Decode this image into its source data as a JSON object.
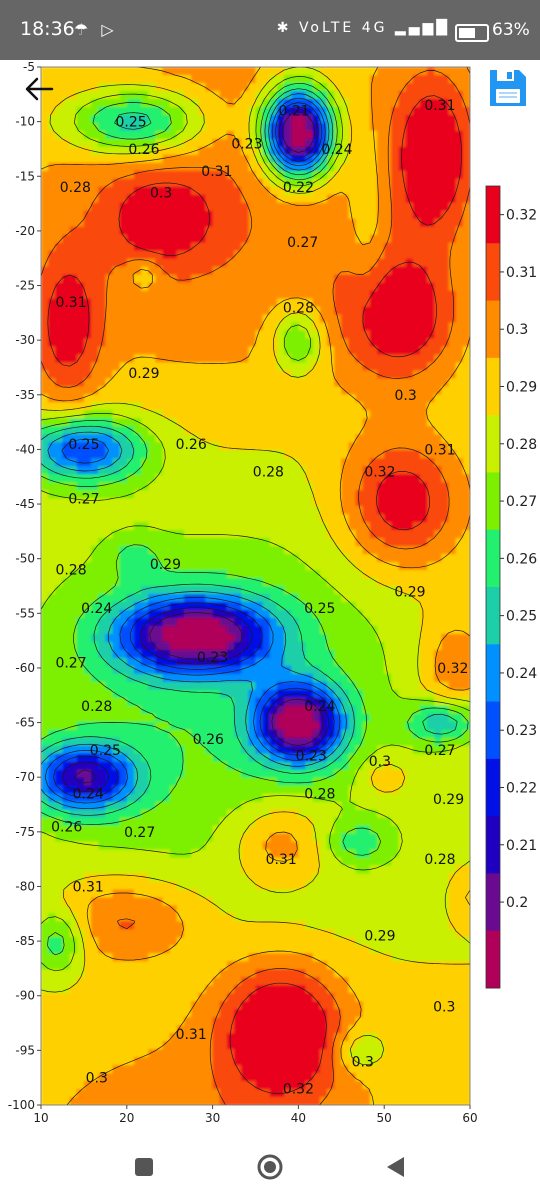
{
  "status_bar": {
    "time": "18:36",
    "left_icons": "☂ ▷",
    "right_icons": "✱ VoLTE 4G ▂▄▆█",
    "battery": "63%",
    "battery_level": 0.63
  },
  "toolbar": {
    "back_icon": "arrow-left-icon",
    "save_icon": "save-floppy-icon",
    "save_color": "#2196f3"
  },
  "nav_bar": {
    "recents_icon": "square-icon",
    "home_icon": "circle-icon",
    "back_icon": "triangle-back-icon"
  },
  "chart_data": {
    "type": "heatmap",
    "subtype": "filled-contour",
    "xlim": [
      10,
      60
    ],
    "ylim": [
      -100,
      -5
    ],
    "x_ticks": [
      10,
      20,
      30,
      40,
      50,
      60
    ],
    "y_ticks": [
      -5,
      -10,
      -15,
      -20,
      -25,
      -30,
      -35,
      -40,
      -45,
      -50,
      -55,
      -60,
      -65,
      -70,
      -75,
      -80,
      -85,
      -90,
      -95,
      -100
    ],
    "colorbar": {
      "levels": [
        0.32,
        0.31,
        0.3,
        0.29,
        0.28,
        0.27,
        0.26,
        0.25,
        0.24,
        0.23,
        0.22,
        0.21,
        0.2
      ],
      "colors": [
        "#e8001c",
        "#fa4a0c",
        "#ff8c00",
        "#ffd000",
        "#c8f000",
        "#7cf000",
        "#22f06e",
        "#1ccfa8",
        "#0090ff",
        "#0050ff",
        "#0010e6",
        "#2000c0",
        "#6a0a90",
        "#b0005a"
      ]
    },
    "contour_labels": [
      {
        "text": "0.25",
        "x": 20.5,
        "y": -10
      },
      {
        "text": "0.26",
        "x": 22,
        "y": -12.5
      },
      {
        "text": "0.28",
        "x": 14,
        "y": -16
      },
      {
        "text": "0.3",
        "x": 24,
        "y": -16.5
      },
      {
        "text": "0.31",
        "x": 30.5,
        "y": -14.5
      },
      {
        "text": "0.23",
        "x": 34,
        "y": -12
      },
      {
        "text": "0.21",
        "x": 39.5,
        "y": -9
      },
      {
        "text": "0.24",
        "x": 44.5,
        "y": -12.5
      },
      {
        "text": "0.22",
        "x": 40,
        "y": -16
      },
      {
        "text": "0.27",
        "x": 40.5,
        "y": -21
      },
      {
        "text": "0.31",
        "x": 56.5,
        "y": -8.5
      },
      {
        "text": "0.31",
        "x": 13.5,
        "y": -26.5
      },
      {
        "text": "0.28",
        "x": 40,
        "y": -27
      },
      {
        "text": "0.29",
        "x": 22,
        "y": -33
      },
      {
        "text": "0.3",
        "x": 52.5,
        "y": -35
      },
      {
        "text": "0.25",
        "x": 15,
        "y": -39.5
      },
      {
        "text": "0.26",
        "x": 27.5,
        "y": -39.5
      },
      {
        "text": "0.28",
        "x": 36.5,
        "y": -42
      },
      {
        "text": "0.32",
        "x": 49.5,
        "y": -42
      },
      {
        "text": "0.31",
        "x": 56.5,
        "y": -40
      },
      {
        "text": "0.27",
        "x": 15,
        "y": -44.5
      },
      {
        "text": "0.28",
        "x": 13.5,
        "y": -51
      },
      {
        "text": "0.29",
        "x": 24.5,
        "y": -50.5
      },
      {
        "text": "0.29",
        "x": 53,
        "y": -53
      },
      {
        "text": "0.24",
        "x": 16.5,
        "y": -54.5
      },
      {
        "text": "0.25",
        "x": 42.5,
        "y": -54.5
      },
      {
        "text": "0.23",
        "x": 30,
        "y": -59
      },
      {
        "text": "0.27",
        "x": 13.5,
        "y": -59.5
      },
      {
        "text": "0.32",
        "x": 58,
        "y": -60
      },
      {
        "text": "0.28",
        "x": 16.5,
        "y": -63.5
      },
      {
        "text": "0.24",
        "x": 42.5,
        "y": -63.5
      },
      {
        "text": "0.26",
        "x": 29.5,
        "y": -66.5
      },
      {
        "text": "0.25",
        "x": 17.5,
        "y": -67.5
      },
      {
        "text": "0.23",
        "x": 41.5,
        "y": -68
      },
      {
        "text": "0.3",
        "x": 49.5,
        "y": -68.5
      },
      {
        "text": "0.27",
        "x": 56.5,
        "y": -67.5
      },
      {
        "text": "0.24",
        "x": 15.5,
        "y": -71.5
      },
      {
        "text": "0.28",
        "x": 42.5,
        "y": -71.5
      },
      {
        "text": "0.29",
        "x": 57.5,
        "y": -72
      },
      {
        "text": "0.26",
        "x": 13,
        "y": -74.5
      },
      {
        "text": "0.27",
        "x": 21.5,
        "y": -75
      },
      {
        "text": "0.31",
        "x": 38,
        "y": -77.5
      },
      {
        "text": "0.28",
        "x": 56.5,
        "y": -77.5
      },
      {
        "text": "0.31",
        "x": 15.5,
        "y": -80
      },
      {
        "text": "0.29",
        "x": 49.5,
        "y": -84.5
      },
      {
        "text": "0.3",
        "x": 57,
        "y": -91
      },
      {
        "text": "0.31",
        "x": 27.5,
        "y": -93.5
      },
      {
        "text": "0.3",
        "x": 47.5,
        "y": -96
      },
      {
        "text": "0.3",
        "x": 16.5,
        "y": -97.5
      },
      {
        "text": "0.32",
        "x": 40,
        "y": -98.5
      }
    ]
  }
}
